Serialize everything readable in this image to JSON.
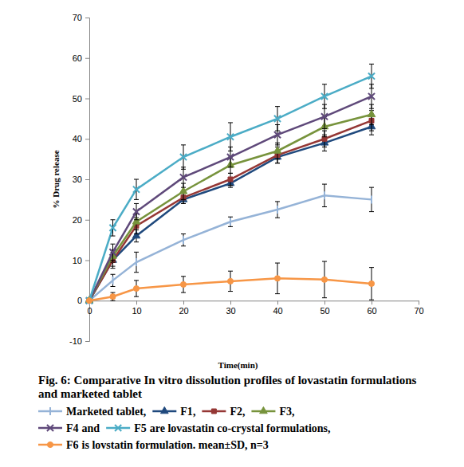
{
  "chart_data": {
    "type": "line",
    "title": "Fig. 6: Comparative In vitro dissolution profiles of lovastatin formulations and marketed tablet",
    "x_label": "Time(min)",
    "y_label": "% Drug release",
    "x": [
      0,
      5,
      10,
      20,
      30,
      40,
      50,
      60
    ],
    "xlim": [
      0,
      70
    ],
    "xticks": [
      0,
      10,
      20,
      30,
      40,
      50,
      60,
      70
    ],
    "ylim": [
      -10,
      70
    ],
    "yticks": [
      -10,
      0,
      10,
      20,
      30,
      40,
      50,
      60,
      70
    ],
    "grid": false,
    "series": [
      {
        "name": "Marketed tablet",
        "color": "#95b3d7",
        "marker": "dash",
        "line_style": "solid",
        "values": [
          0,
          5,
          9.5,
          15,
          19.5,
          22.5,
          26,
          25
        ],
        "errors": [
          0,
          1.5,
          2.5,
          1.5,
          1.2,
          2,
          2.8,
          3
        ]
      },
      {
        "name": "F1",
        "color": "#1f497d",
        "marker": "triangle",
        "line_style": "solid",
        "values": [
          0,
          10,
          16,
          25,
          29,
          35.5,
          39,
          43
        ],
        "errors": [
          0,
          1.5,
          1.5,
          1,
          1,
          1.5,
          2,
          2
        ]
      },
      {
        "name": "F2",
        "color": "#953735",
        "marker": "square",
        "line_style": "solid",
        "values": [
          0,
          10,
          18.5,
          25.5,
          30,
          36,
          40,
          44.5
        ],
        "errors": [
          0,
          2,
          2,
          1.5,
          1.5,
          2,
          2,
          2.5
        ]
      },
      {
        "name": "F3",
        "color": "#77933c",
        "marker": "triangle",
        "line_style": "solid",
        "values": [
          0,
          11,
          19.5,
          27,
          33.5,
          37,
          43,
          46
        ],
        "errors": [
          0,
          1.5,
          2,
          2,
          2,
          2,
          2.5,
          2.5
        ]
      },
      {
        "name": "F4",
        "color": "#5f497a",
        "marker": "x",
        "line_style": "solid",
        "values": [
          0,
          12,
          22,
          30.5,
          35.5,
          41,
          45.5,
          50.5
        ],
        "errors": [
          0,
          2,
          2,
          2.5,
          2.5,
          2.5,
          3,
          3
        ]
      },
      {
        "name": "F5",
        "color": "#4bacc6",
        "marker": "x",
        "line_style": "solid",
        "values": [
          0,
          18,
          27.5,
          35.5,
          40.5,
          45,
          50.5,
          55.5
        ],
        "errors": [
          0,
          2,
          2.5,
          3,
          3.5,
          3,
          3,
          3
        ]
      },
      {
        "name": "F6",
        "color": "#f79646",
        "marker": "circle",
        "line_style": "solid",
        "values": [
          0,
          1,
          3,
          4,
          4.8,
          5.5,
          5.2,
          4.2
        ],
        "errors": [
          0,
          1,
          2,
          2,
          2.5,
          3.8,
          4.5,
          4
        ]
      }
    ],
    "annotations": [
      ",",
      ",",
      ",",
      ",",
      "and",
      "are lovastatin co-crystal formulations,",
      "is lovstatin formulation. mean±SD, n=3"
    ]
  }
}
